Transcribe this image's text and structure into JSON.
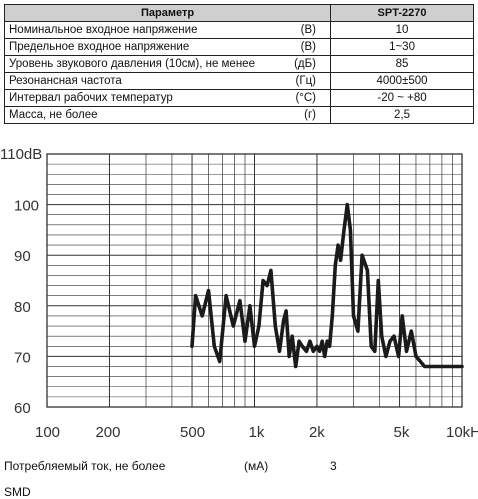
{
  "table": {
    "header": {
      "param": "Параметр",
      "value": "SPT-2270"
    },
    "rows": [
      {
        "param": "Номинальное входное напряжение",
        "unit": "(В)",
        "value": "10"
      },
      {
        "param": "Предельное входное напряжение",
        "unit": "(В)",
        "value": "1~30"
      },
      {
        "param": "Уровень звукового давления (10см), не менее",
        "unit": "(дБ)",
        "value": "85"
      },
      {
        "param": "Резонансная частота",
        "unit": "(Гц)",
        "value": "4000±500"
      },
      {
        "param": "Интервал рабочих температур",
        "unit": "(°С)",
        "value": "-20 ~ +80"
      },
      {
        "param": "Масса, не более",
        "unit": "(г)",
        "value": "2,5"
      }
    ]
  },
  "chart_data": {
    "type": "line",
    "x_scale": "log",
    "xlim": [
      100,
      10000
    ],
    "ylim": [
      60,
      110
    ],
    "grid": true,
    "x_tick_labels": [
      "100",
      "200",
      "500",
      "1k",
      "2k",
      "5k",
      "10kHz"
    ],
    "y_tick_labels": [
      "110dB",
      "100",
      "90",
      "80",
      "70",
      "60"
    ],
    "series": [
      {
        "x": [
          500,
          520,
          560,
          600,
          640,
          680,
          730,
          790,
          850,
          900,
          950,
          1000,
          1050,
          1100,
          1150,
          1200,
          1260,
          1320,
          1380,
          1420,
          1470,
          1520,
          1580,
          1640,
          1700,
          1780,
          1850,
          1920,
          2000,
          2060,
          2120,
          2180,
          2240,
          2300,
          2370,
          2450,
          2530,
          2600,
          2700,
          2800,
          2900,
          3000,
          3150,
          3300,
          3500,
          3650,
          3800,
          3950,
          4100,
          4300,
          4500,
          4700,
          4950,
          5150,
          5400,
          5700,
          6000,
          6300,
          6600,
          6900,
          7200,
          7500,
          7800,
          8100,
          8400,
          8700,
          9000,
          9300,
          9600,
          10000
        ],
        "y": [
          72,
          82,
          78,
          83,
          72,
          69,
          82,
          76,
          81,
          73,
          80,
          72,
          76,
          85,
          84,
          87,
          76,
          71,
          77,
          79,
          70,
          74,
          68,
          73,
          72,
          71,
          73,
          71,
          72,
          71,
          73,
          70,
          73,
          72,
          78,
          88,
          92,
          89,
          95,
          100,
          95,
          78,
          75,
          90,
          87,
          72,
          71,
          85,
          74,
          70,
          73,
          74,
          70,
          78,
          71,
          75,
          70,
          69,
          68,
          68,
          68,
          68,
          68,
          68,
          68,
          68,
          68,
          68,
          68,
          68
        ]
      }
    ]
  },
  "footer": {
    "current_label": "Потребляемый ток, не более",
    "current_unit": "(мА)",
    "current_value": "3",
    "mount_type": "SMD"
  }
}
